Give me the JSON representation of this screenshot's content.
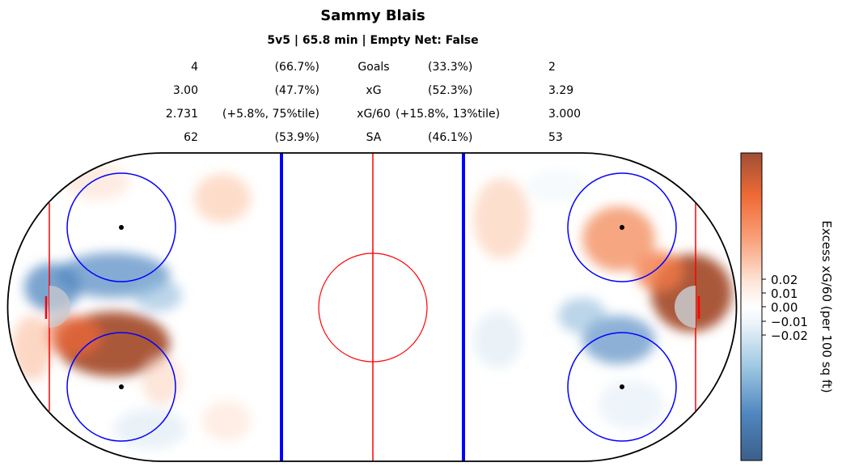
{
  "title": "Sammy Blais",
  "subtitle": "5v5 | 65.8 min | Empty Net: False",
  "stats": [
    {
      "left": "4",
      "left_pct": "(66.7%)",
      "label": "Goals",
      "right_pct": "(33.3%)",
      "right": "2"
    },
    {
      "left": "3.00",
      "left_pct": "(47.7%)",
      "label": "xG",
      "right_pct": "(52.3%)",
      "right": "3.29"
    },
    {
      "left": "2.731",
      "left_pct": "(+5.8%, 75%tile)",
      "label": "xG/60",
      "right_pct": "(+15.8%, 13%tile)",
      "right": "3.000"
    },
    {
      "left": "62",
      "left_pct": "(53.9%)",
      "label": "SA",
      "right_pct": "(46.1%)",
      "right": "53"
    }
  ],
  "colorbar": {
    "label": "Excess xG/60 (per 100 sq ft)",
    "ticks": [
      "0.02",
      "0.01",
      "0.00",
      "−0.01",
      "−0.02"
    ],
    "colors": {
      "low": "#3b5f8a",
      "mid": "#ffffff",
      "high": "#a04f35"
    }
  },
  "chart_data": {
    "type": "heatmap",
    "title": "Sammy Blais",
    "subtitle": "5v5 | 65.8 min | Empty Net: False",
    "colorbar_label": "Excess xG/60 (per 100 sq ft)",
    "colorbar_ticks": [
      0.02,
      0.01,
      0.0,
      -0.01,
      -0.02
    ],
    "surface": "hockey rink, full ice",
    "rink_lines": {
      "red": "#ff0000",
      "blue": "#0000ff",
      "faceoff_circles": "#0000ff",
      "boards": "#000000"
    },
    "hotspots": [
      {
        "zone": "left end, lower slot",
        "intensity": 0.035
      },
      {
        "zone": "left end, upper slot",
        "intensity": -0.02
      },
      {
        "zone": "left end, crease",
        "intensity": -0.015
      },
      {
        "zone": "right end, crease",
        "intensity": 0.03
      },
      {
        "zone": "right end, upper circle",
        "intensity": 0.015
      },
      {
        "zone": "right end, lower slot",
        "intensity": -0.02
      }
    ]
  }
}
